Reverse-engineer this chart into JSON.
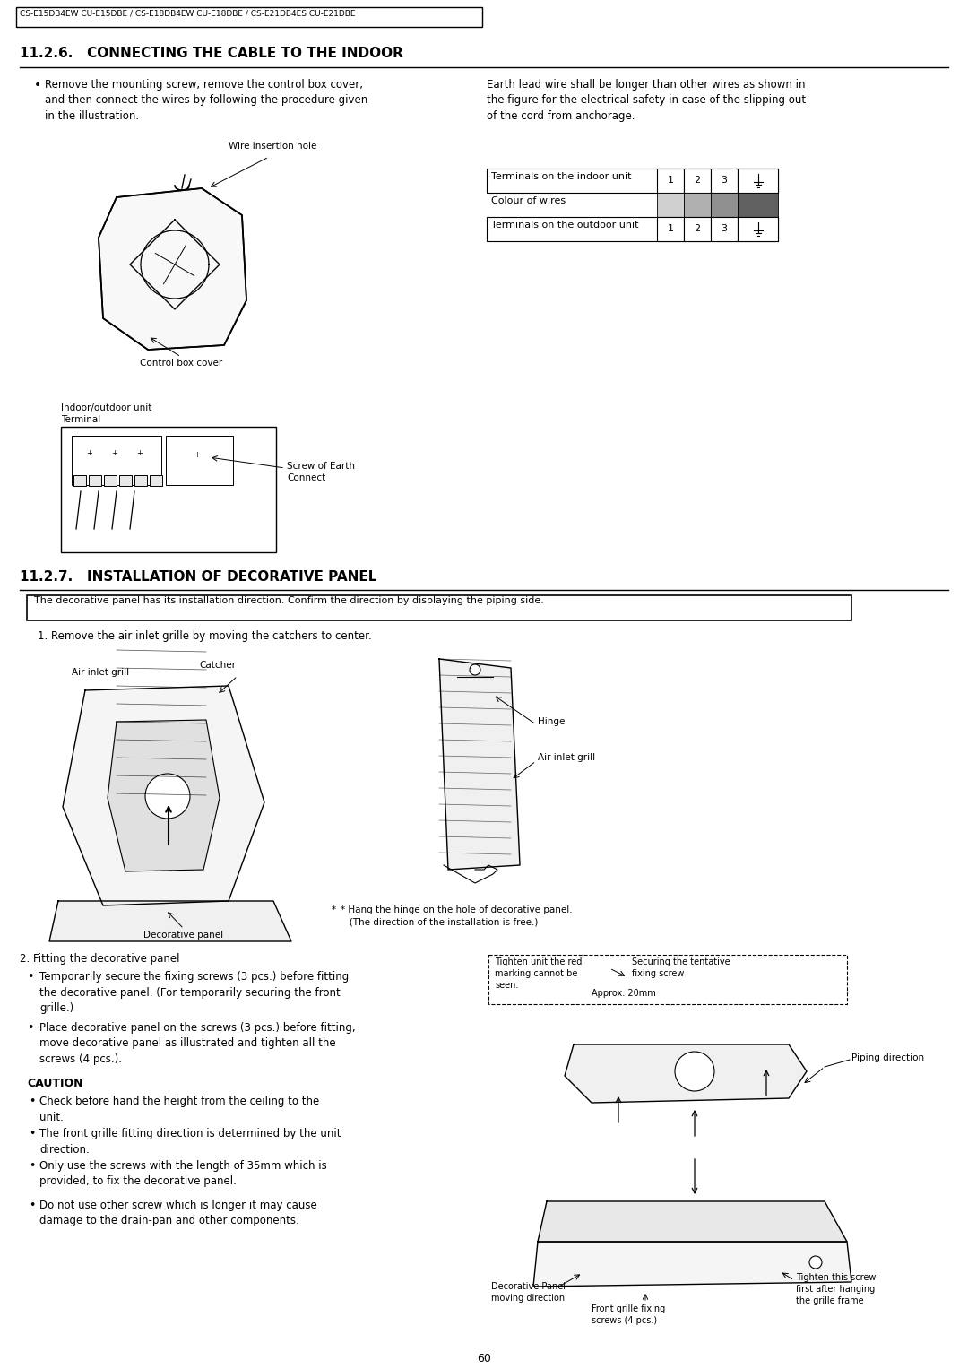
{
  "bg_color": "#ffffff",
  "page_width": 10.8,
  "page_height": 15.27,
  "header_text": "CS-E15DB4EW CU-E15DBE / CS-E18DB4EW CU-E18DBE / CS-E21DB4ES CU-E21DBE",
  "section1_title": "11.2.6.   CONNECTING THE CABLE TO THE INDOOR",
  "section2_title": "11.2.7.   INSTALLATION OF DECORATIVE PANEL",
  "s1_bullet": "Remove the mounting screw, remove the control box cover,\nand then connect the wires by following the procedure given\nin the illustration.",
  "s1_right": "Earth lead wire shall be longer than other wires as shown in\nthe figure for the electrical safety in case of the slipping out\nof the cord from anchorage.",
  "tbl_r1_lbl": "Terminals on the indoor unit",
  "tbl_r1_vals": [
    "1",
    "2",
    "3"
  ],
  "tbl_r2_lbl": "Colour of wires",
  "tbl_r3_lbl": "Terminals on the outdoor unit",
  "tbl_r3_vals": [
    "1",
    "2",
    "3"
  ],
  "wire_ins_lbl": "Wire insertion hole",
  "ctrl_box_lbl": "Control box cover",
  "in_out_lbl": "Indoor/outdoor unit\nTerminal",
  "screw_lbl": "Screw of Earth\nConnect",
  "s2_note": "The decorative panel has its installation direction. Confirm the direction by displaying the piping side.",
  "s2_step1": "1. Remove the air inlet grille by moving the catchers to center.",
  "air_grill_lbl": "Air inlet grill",
  "catcher_lbl": "Catcher",
  "hinge_lbl": "Hinge",
  "air_grill2_lbl": "Air inlet grill",
  "hang_note": "* Hang the hinge on the hole of decorative panel.\n   (The direction of the installation is free.)",
  "dec_panel_lbl": "Decorative panel",
  "fitting_title": "2. Fitting the decorative panel",
  "fit_b1": "Temporarily secure the fixing screws (3 pcs.) before fitting\nthe decorative panel. (For temporarily securing the front\ngrille.)",
  "fit_b2": "Place decorative panel on the screws (3 pcs.) before fitting,\nmove decorative panel as illustrated and tighten all the\nscrews (4 pcs.).",
  "caution_title": "CAUTION",
  "caution_b": [
    "Check before hand the height from the ceiling to the\nunit.",
    "The front grille fitting direction is determined by the unit\ndirection.",
    "Only use the screws with the length of 35mm which is\nprovided, to fix the decorative panel.",
    "Do not use other screw which is longer it may cause\ndamage to the drain-pan and other components."
  ],
  "tighten_lbl": "Tighten unit the red\nmarking cannot be\nseen.",
  "securing_lbl": "Securing the tentative\nfixing screw",
  "approx_lbl": "Approx. 20mm",
  "piping_lbl": "Piping direction",
  "dec_moving_lbl": "Decorative Panel\nmoving direction",
  "front_grille_lbl": "Front grille fixing\nscrews (4 pcs.)",
  "tighten_screw_lbl": "Tighten this screw\nfirst after hanging\nthe grille frame",
  "page_number": "60",
  "wire_color1": "#d0d0d0",
  "wire_color2": "#b0b0b0",
  "wire_color3": "#909090",
  "wire_color4": "#606060"
}
